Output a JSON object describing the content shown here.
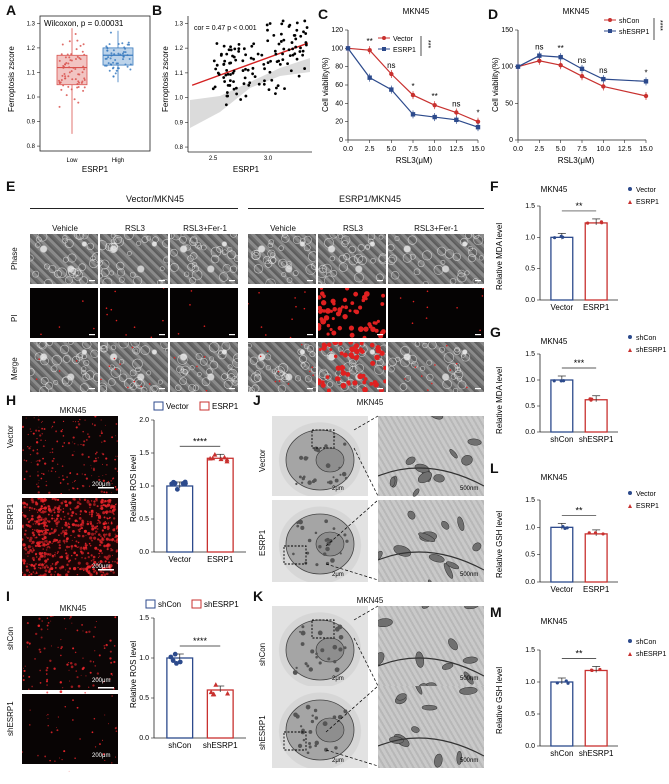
{
  "panels": {
    "A": {
      "label": "A",
      "stat": "Wilcoxon, p = 0.00031",
      "ylabel": "Ferroptosis zscore",
      "xlabel": "ESRP1",
      "groups": [
        "Low",
        "High"
      ],
      "yticks": [
        "0.8",
        "0.9",
        "1.0",
        "1.1",
        "1.2",
        "1.3"
      ],
      "colors": {
        "low": "#d9534f",
        "high": "#3a7bbf"
      }
    },
    "B": {
      "label": "B",
      "stat": "cor = 0.47 p < 0.001",
      "ylabel": "Ferroptosis zscore",
      "xlabel": "ESRP1",
      "xticks": [
        "2.5",
        "3.0"
      ],
      "yticks": [
        "0.8",
        "0.9",
        "1.0",
        "1.1",
        "1.2",
        "1.3"
      ]
    },
    "C": {
      "label": "C",
      "title": "MKN45",
      "ylabel": "Cell viability(%)",
      "xlabel": "RSL3(μM)",
      "xticks": [
        "0.0",
        "2.5",
        "5.0",
        "7.5",
        "10.0",
        "12.5",
        "15.0"
      ],
      "yticks": [
        "0",
        "20",
        "40",
        "60",
        "80",
        "100",
        "120"
      ],
      "legend": [
        "Vector",
        "ESRP1"
      ],
      "sig": [
        "**",
        "ns",
        "*",
        "**",
        "ns",
        "*"
      ],
      "bar_sig": "***"
    },
    "D": {
      "label": "D",
      "title": "MKN45",
      "ylabel": "Cell viability(%)",
      "xlabel": "RSL3(μM)",
      "xticks": [
        "0.0",
        "2.5",
        "5.0",
        "7.5",
        "10.0",
        "12.5",
        "15.0"
      ],
      "yticks": [
        "0",
        "50",
        "100",
        "150"
      ],
      "legend": [
        "shCon",
        "shESRP1"
      ],
      "sig": [
        "ns",
        "**",
        "ns",
        "ns",
        "*"
      ],
      "bar_sig": "****"
    },
    "E": {
      "label": "E",
      "group1": "Vector/MKN45",
      "group2": "ESRP1/MKN45",
      "cols": [
        "Vehicle",
        "RSL3",
        "RSL3+Fer-1",
        "Vehicle",
        "RSL3",
        "RSL3+Fer-1"
      ],
      "rows": [
        "Phase",
        "PI",
        "Merge"
      ]
    },
    "F": {
      "label": "F",
      "title": "MKN45",
      "ylabel": "Relative MDA level",
      "xticks": [
        "Vector",
        "ESRP1"
      ],
      "yticks": [
        "0.0",
        "0.5",
        "1.0",
        "1.5"
      ],
      "legend": [
        "Vector",
        "ESRP1"
      ],
      "sig": "**"
    },
    "G": {
      "label": "G",
      "title": "MKN45",
      "ylabel": "Relative MDA level",
      "xticks": [
        "shCon",
        "shESRP1"
      ],
      "yticks": [
        "0.0",
        "0.5",
        "1.0",
        "1.5"
      ],
      "legend": [
        "shCon",
        "shESRP1"
      ],
      "sig": "***"
    },
    "H": {
      "label": "H",
      "title": "MKN45",
      "rows": [
        "Vector",
        "ESRP1"
      ],
      "scale": "200μm",
      "ylabel": "Relative ROS level",
      "xticks": [
        "Vector",
        "ESRP1"
      ],
      "yticks": [
        "0.0",
        "0.5",
        "1.0",
        "1.5",
        "2.0"
      ],
      "legend": [
        "Vector",
        "ESRP1"
      ],
      "sig": "****"
    },
    "I": {
      "label": "I",
      "title": "MKN45",
      "rows": [
        "shCon",
        "shESRP1"
      ],
      "scale": "200μm",
      "ylabel": "Relative ROS level",
      "xticks": [
        "shCon",
        "shESRP1"
      ],
      "yticks": [
        "0.0",
        "0.5",
        "1.0",
        "1.5"
      ],
      "legend": [
        "shCon",
        "shESRP1"
      ],
      "sig": "****"
    },
    "J": {
      "label": "J",
      "title": "MKN45",
      "rows": [
        "Vector",
        "ESRP1"
      ],
      "scale1": "2μm",
      "scale2": "500nm"
    },
    "K": {
      "label": "K",
      "title": "MKN45",
      "rows": [
        "shCon",
        "shESRP1"
      ],
      "scale1": "2μm",
      "scale2": "500nm"
    },
    "L": {
      "label": "L",
      "title": "MKN45",
      "ylabel": "Relative GSH level",
      "xticks": [
        "Vector",
        "ESRP1"
      ],
      "yticks": [
        "0.0",
        "0.5",
        "1.0",
        "1.5"
      ],
      "legend": [
        "Vector",
        "ESRP1"
      ],
      "sig": "**"
    },
    "M": {
      "label": "M",
      "title": "MKN45",
      "ylabel": "Relative GSH level",
      "xticks": [
        "shCon",
        "shESRP1"
      ],
      "yticks": [
        "0.0",
        "0.5",
        "1.0",
        "1.5"
      ],
      "legend": [
        "shCon",
        "shESRP1"
      ],
      "sig": "**"
    }
  },
  "chart_data": [
    {
      "id": "A",
      "type": "box",
      "categories": [
        "Low",
        "High"
      ],
      "series": [
        {
          "name": "Low",
          "median": 1.12,
          "q1": 1.05,
          "q3": 1.17,
          "min": 0.85,
          "max": 1.28
        },
        {
          "name": "High",
          "median": 1.17,
          "q1": 1.13,
          "q3": 1.2,
          "min": 1.06,
          "max": 1.27
        }
      ],
      "ylim": [
        0.78,
        1.33
      ]
    },
    {
      "id": "B",
      "type": "scatter",
      "xlim": [
        2.0,
        3.5
      ],
      "ylim": [
        0.78,
        1.33
      ],
      "trend": {
        "x": [
          2.05,
          3.45
        ],
        "y": [
          1.05,
          1.22
        ]
      }
    },
    {
      "id": "C",
      "type": "line",
      "x": [
        0,
        2.5,
        5,
        7.5,
        10,
        12.5,
        15
      ],
      "series": [
        {
          "name": "Vector",
          "values": [
            100,
            98,
            72,
            49,
            38,
            30,
            20
          ]
        },
        {
          "name": "ESRP1",
          "values": [
            100,
            68,
            55,
            28,
            25,
            22,
            14
          ]
        }
      ],
      "ylim": [
        0,
        120
      ]
    },
    {
      "id": "D",
      "type": "line",
      "x": [
        0,
        2.5,
        5,
        7.5,
        10,
        12.5,
        15
      ],
      "series": [
        {
          "name": "shCon",
          "values": [
            100,
            108,
            102,
            87,
            73,
            null,
            60
          ]
        },
        {
          "name": "shESRP1",
          "values": [
            100,
            115,
            113,
            97,
            83,
            null,
            80
          ]
        }
      ],
      "ylim": [
        0,
        150
      ]
    },
    {
      "id": "F",
      "type": "bar",
      "categories": [
        "Vector",
        "ESRP1"
      ],
      "values": [
        1.0,
        1.23
      ],
      "ylim": [
        0,
        1.5
      ]
    },
    {
      "id": "G",
      "type": "bar",
      "categories": [
        "shCon",
        "shESRP1"
      ],
      "values": [
        1.0,
        0.62
      ],
      "ylim": [
        0,
        1.5
      ]
    },
    {
      "id": "H",
      "type": "bar",
      "categories": [
        "Vector",
        "ESRP1"
      ],
      "values": [
        1.0,
        1.42
      ],
      "ylim": [
        0,
        2.0
      ]
    },
    {
      "id": "I",
      "type": "bar",
      "categories": [
        "shCon",
        "shESRP1"
      ],
      "values": [
        1.0,
        0.6
      ],
      "ylim": [
        0,
        1.5
      ]
    },
    {
      "id": "L",
      "type": "bar",
      "categories": [
        "Vector",
        "ESRP1"
      ],
      "values": [
        1.0,
        0.88
      ],
      "ylim": [
        0,
        1.5
      ]
    },
    {
      "id": "M",
      "type": "bar",
      "categories": [
        "shCon",
        "shESRP1"
      ],
      "values": [
        1.0,
        1.18
      ],
      "ylim": [
        0,
        1.5
      ]
    }
  ],
  "colors": {
    "red": "#c8312f",
    "blue": "#2c4a8c",
    "darkred": "#b02424"
  }
}
